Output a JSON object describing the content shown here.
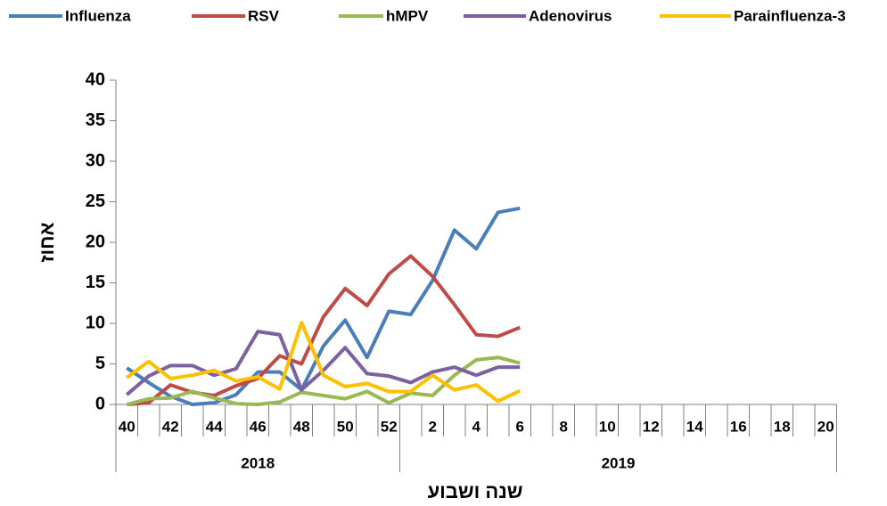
{
  "chart_data": {
    "type": "line",
    "y_label": "אחוז",
    "x_label": "שנה ושבוע",
    "categories": [
      "40",
      null,
      "42",
      null,
      "44",
      null,
      "46",
      null,
      "48",
      null,
      "50",
      null,
      "52",
      null,
      "2",
      null,
      "4",
      null,
      "6",
      null,
      "8",
      null,
      "10",
      null,
      "12",
      null,
      "14",
      null,
      "16",
      null,
      "18",
      null,
      "20"
    ],
    "groups": [
      "2018",
      "2019"
    ],
    "ylim": [
      0,
      40
    ],
    "yticks": [
      0,
      5,
      10,
      15,
      20,
      25,
      30,
      35,
      40
    ],
    "grid": false,
    "legend": "top",
    "series": [
      {
        "name": "Influenza",
        "color": "#4a7ebb",
        "values": [
          4.5,
          2.7,
          1.0,
          0,
          0.2,
          1.2,
          4,
          4,
          1.8,
          7.2,
          10.4,
          5.8,
          11.5,
          11.1,
          15.3,
          21.5,
          19.2,
          23.7,
          24.2,
          null,
          null,
          null,
          null,
          null,
          null,
          null,
          null,
          null,
          null,
          null,
          null,
          null,
          null
        ]
      },
      {
        "name": "RSV",
        "color": "#be4b48",
        "values": [
          0,
          0.2,
          2.4,
          1.5,
          1.1,
          2.3,
          3.2,
          6,
          5,
          10.8,
          14.3,
          12.2,
          16.1,
          18.3,
          15.8,
          12.3,
          8.6,
          8.4,
          9.5,
          null,
          null,
          null,
          null,
          null,
          null,
          null,
          null,
          null,
          null,
          null,
          null,
          null,
          null
        ]
      },
      {
        "name": "hMPV",
        "color": "#98b954",
        "values": [
          0,
          0.7,
          0.8,
          1.6,
          0.8,
          0.1,
          0,
          0.3,
          1.5,
          1.1,
          0.7,
          1.6,
          0.2,
          1.4,
          1.1,
          3.6,
          5.5,
          5.8,
          5.1,
          null,
          null,
          null,
          null,
          null,
          null,
          null,
          null,
          null,
          null,
          null,
          null,
          null,
          null
        ]
      },
      {
        "name": "Adenovirus",
        "color": "#7d60a0",
        "values": [
          1.2,
          3.5,
          4.8,
          4.8,
          3.6,
          4.4,
          9.0,
          8.6,
          1.8,
          4.2,
          7.0,
          3.8,
          3.5,
          2.7,
          4.0,
          4.6,
          3.6,
          4.6,
          4.6,
          null,
          null,
          null,
          null,
          null,
          null,
          null,
          null,
          null,
          null,
          null,
          null,
          null,
          null
        ]
      },
      {
        "name": "Parainfluenza-3",
        "color": "#ffc000",
        "values": [
          3.3,
          5.3,
          3.2,
          3.6,
          4.2,
          2.9,
          3.4,
          1.9,
          10.1,
          3.6,
          2.2,
          2.6,
          1.6,
          1.6,
          3.6,
          1.8,
          2.4,
          0.4,
          1.7,
          null,
          null,
          null,
          null,
          null,
          null,
          null,
          null,
          null,
          null,
          null,
          null,
          null,
          null
        ]
      }
    ]
  }
}
